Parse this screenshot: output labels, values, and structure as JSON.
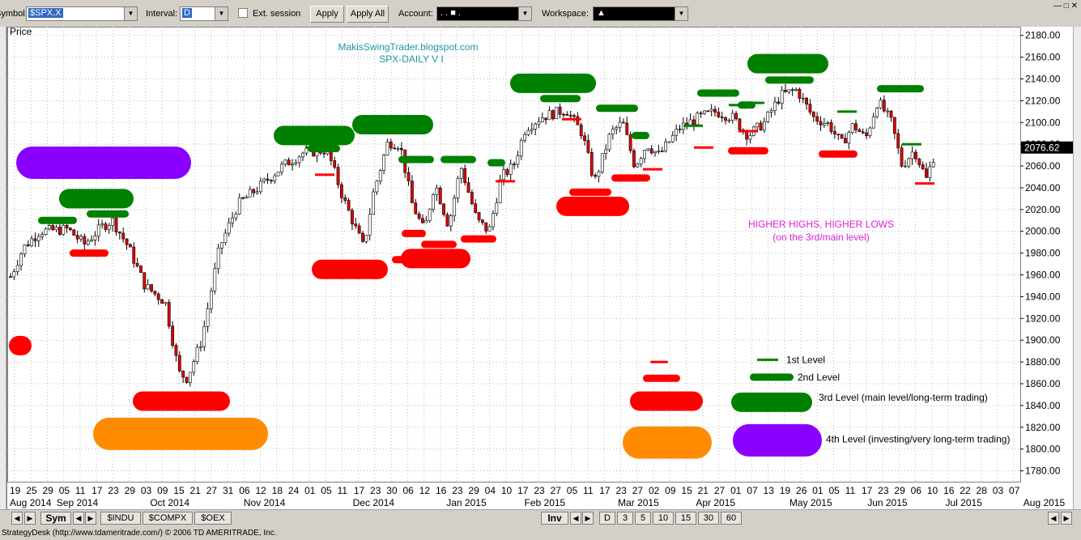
{
  "toolbar": {
    "symbol_label": "Symbol:",
    "symbol_value": "$SPX.X",
    "interval_label": "Interval:",
    "interval_value": "D",
    "ext_session_label": "Ext. session",
    "apply_label": "Apply",
    "apply_all_label": "Apply All",
    "account_label": "Account:",
    "account_value": ".    .    ■    .",
    "workspace_label": "Workspace:",
    "workspace_value": "▲",
    "window_buttons": "—  □  ✕"
  },
  "chart_data": {
    "type": "candlestick",
    "ylabel": "Price",
    "title_line1": "MakisSwingTrader.blogspot.com",
    "title_line2": "SPX-DAILY  V I",
    "annotation_line1": "HIGHER HIGHS, HIGHER LOWS",
    "annotation_line2": "(on the 3rd/main level)",
    "ylim": [
      1770,
      2185
    ],
    "y_ticks": [
      "2180.00",
      "2160.00",
      "2140.00",
      "2120.00",
      "2100.00",
      "2080.00",
      "2060.00",
      "2040.00",
      "2020.00",
      "2000.00",
      "1980.00",
      "1960.00",
      "1940.00",
      "1920.00",
      "1900.00",
      "1880.00",
      "1860.00",
      "1840.00",
      "1820.00",
      "1800.00",
      "1780.00"
    ],
    "current_price": "2076.62",
    "x_day_ticks": [
      "19",
      "25",
      "29",
      "05",
      "11",
      "17",
      "23",
      "29",
      "03",
      "09",
      "15",
      "21",
      "27",
      "31",
      "06",
      "12",
      "18",
      "24",
      "01",
      "05",
      "11",
      "17",
      "23",
      "30",
      "06",
      "12",
      "16",
      "23",
      "29",
      "04",
      "10",
      "17",
      "23",
      "27",
      "05",
      "11",
      "17",
      "23",
      "27",
      "02",
      "09",
      "15",
      "21",
      "27",
      "01",
      "07",
      "13",
      "19",
      "26",
      "01",
      "05",
      "11",
      "17",
      "23",
      "29",
      "06",
      "10",
      "16",
      "22",
      "28",
      "03",
      "07"
    ],
    "x_month_ticks": [
      "Aug 2014",
      "Sep 2014",
      "Oct 2014",
      "Nov 2014",
      "Dec 2014",
      "Jan 2015",
      "Feb 2015",
      "Mar 2015",
      "Apr 2015",
      "May 2015",
      "Jun 2015",
      "Jul 2015",
      "Aug 2015"
    ],
    "legend": [
      {
        "level": 1,
        "label": "1st Level",
        "color": "#008000"
      },
      {
        "level": 2,
        "label": "2nd Level",
        "color": "#008000"
      },
      {
        "level": 3,
        "label": "3rd Level (main level/long-term trading)",
        "color": "#008000"
      },
      {
        "level": 4,
        "label": "4th Level (investing/very long-term trading)",
        "color": "#8800ff"
      }
    ],
    "colors": {
      "up": "#ffffff",
      "down": "#e00000",
      "green": "#008000",
      "red": "#ff0000",
      "orange": "#ff8c00",
      "purple": "#8a00ff",
      "grid": "#bbbbbb",
      "title": "#1a9aa0",
      "annotation": "#e020e0"
    }
  },
  "nav": {
    "sym_label": "Sym",
    "tabs": [
      "$INDU",
      "$COMPX",
      "$OEX"
    ],
    "inv_label": "Inv",
    "intervals": [
      "D",
      "3",
      "5",
      "10",
      "15",
      "30",
      "60"
    ]
  },
  "status": {
    "text": "StrategyDesk (http://www.tdameritrade.com/) © 2006 TD AMERITRADE, Inc."
  }
}
